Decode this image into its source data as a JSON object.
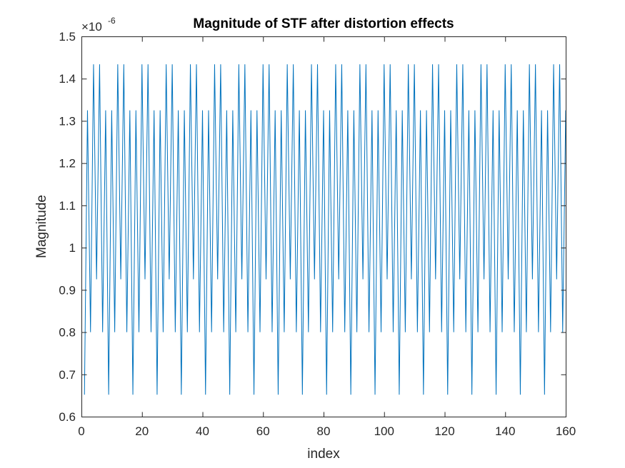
{
  "chart_data": {
    "type": "line",
    "title": "Magnitude of STF after distortion effects",
    "xlabel": "index",
    "ylabel": "Magnitude",
    "y_exponent_base": "×10",
    "y_exponent_power": "-6",
    "xlim": [
      0,
      160
    ],
    "ylim": [
      0.6,
      1.5
    ],
    "xticks": [
      0,
      20,
      40,
      60,
      80,
      100,
      120,
      140,
      160
    ],
    "xtick_labels": [
      "0",
      "20",
      "40",
      "60",
      "80",
      "100",
      "120",
      "140",
      "160"
    ],
    "yticks": [
      0.6,
      0.7,
      0.8,
      0.9,
      1.0,
      1.1,
      1.2,
      1.3,
      1.4,
      1.5
    ],
    "ytick_labels": [
      "0.6",
      "0.7",
      "0.8",
      "0.9",
      "1",
      "1.1",
      "1.2",
      "1.3",
      "1.4",
      "1.5"
    ],
    "grid": false,
    "series": [
      {
        "color": "#0072BD",
        "x_start": 1,
        "x_step": 1,
        "period_pattern": [
          0.652,
          1.325,
          0.8,
          1.434,
          0.925,
          1.434,
          0.8,
          1.325
        ],
        "count": 160
      }
    ]
  }
}
